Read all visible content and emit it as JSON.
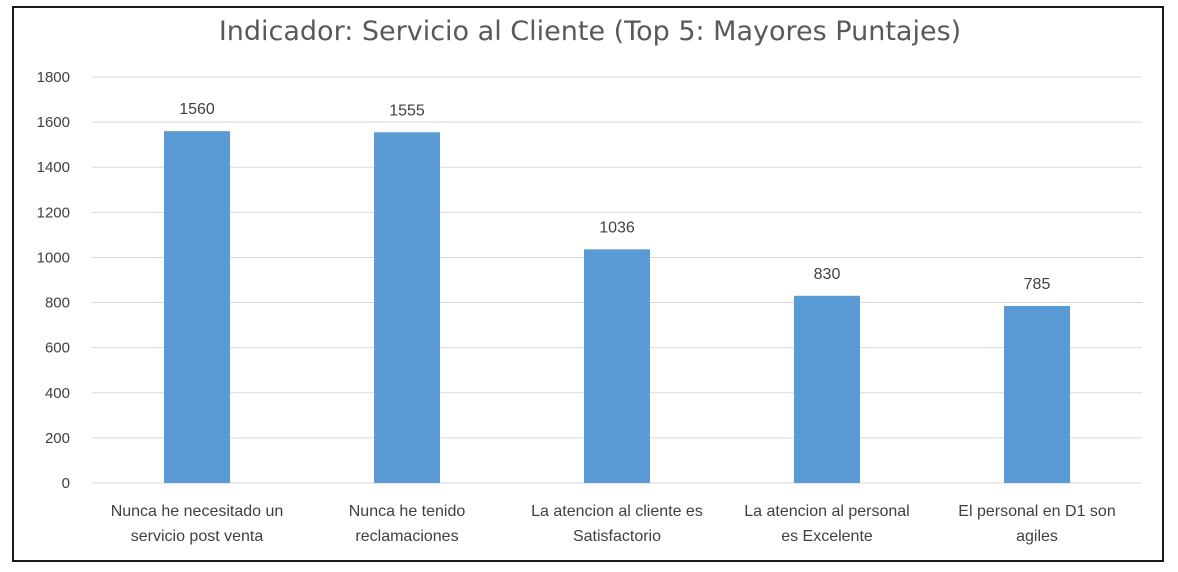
{
  "chart_data": {
    "type": "bar",
    "title": "Indicador: Servicio al Cliente (Top 5: Mayores Puntajes)",
    "categories": [
      [
        "Nunca he necesitado un",
        "servicio post venta"
      ],
      [
        "Nunca he tenido",
        "reclamaciones"
      ],
      [
        "La atencion al cliente es",
        "Satisfactorio"
      ],
      [
        "La atencion al personal",
        "es Excelente"
      ],
      [
        "El personal en D1 son",
        "agiles"
      ]
    ],
    "values": [
      1560,
      1555,
      1036,
      830,
      785
    ],
    "data_labels": [
      "1560",
      "1555",
      "1036",
      "830",
      "785"
    ],
    "ylim": [
      0,
      1800
    ],
    "yticks": [
      "0",
      "200",
      "400",
      "600",
      "800",
      "1000",
      "1200",
      "1400",
      "1600",
      "1800"
    ],
    "grid": true,
    "legend": "none",
    "colors": {
      "bar": "#5b9bd5",
      "grid": "#d9d9d9",
      "text": "#404040",
      "title": "#595959"
    }
  }
}
